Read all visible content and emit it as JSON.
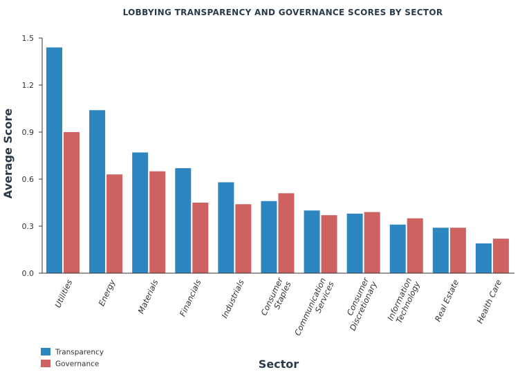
{
  "chart_data": {
    "type": "bar",
    "title": "LOBBYING TRANSPARENCY AND GOVERNANCE SCORES BY SECTOR",
    "xlabel": "Sector",
    "ylabel": "Average Score",
    "ylim": [
      0,
      1.5
    ],
    "yticks": [
      "0.0",
      "0.3",
      "0.6",
      "0.9",
      "1.2",
      "1.5"
    ],
    "categories": [
      [
        "Utilities"
      ],
      [
        "Energy"
      ],
      [
        "Materials"
      ],
      [
        "Financials"
      ],
      [
        "Industrials"
      ],
      [
        "Consumer",
        "Staples"
      ],
      [
        "Communication",
        "Services"
      ],
      [
        "Consumer",
        "Discretionary"
      ],
      [
        "Information",
        "Technology"
      ],
      [
        "Real Estate"
      ],
      [
        "Health Care"
      ]
    ],
    "series": [
      {
        "name": "Transparency",
        "color": "#2e86c1",
        "values": [
          1.44,
          1.04,
          0.77,
          0.67,
          0.58,
          0.46,
          0.4,
          0.38,
          0.31,
          0.29,
          0.19
        ]
      },
      {
        "name": "Governance",
        "color": "#cd6260",
        "values": [
          0.9,
          0.63,
          0.65,
          0.45,
          0.44,
          0.51,
          0.37,
          0.39,
          0.35,
          0.29,
          0.22
        ]
      }
    ],
    "grid": false,
    "legend_position": "bottom-left"
  }
}
